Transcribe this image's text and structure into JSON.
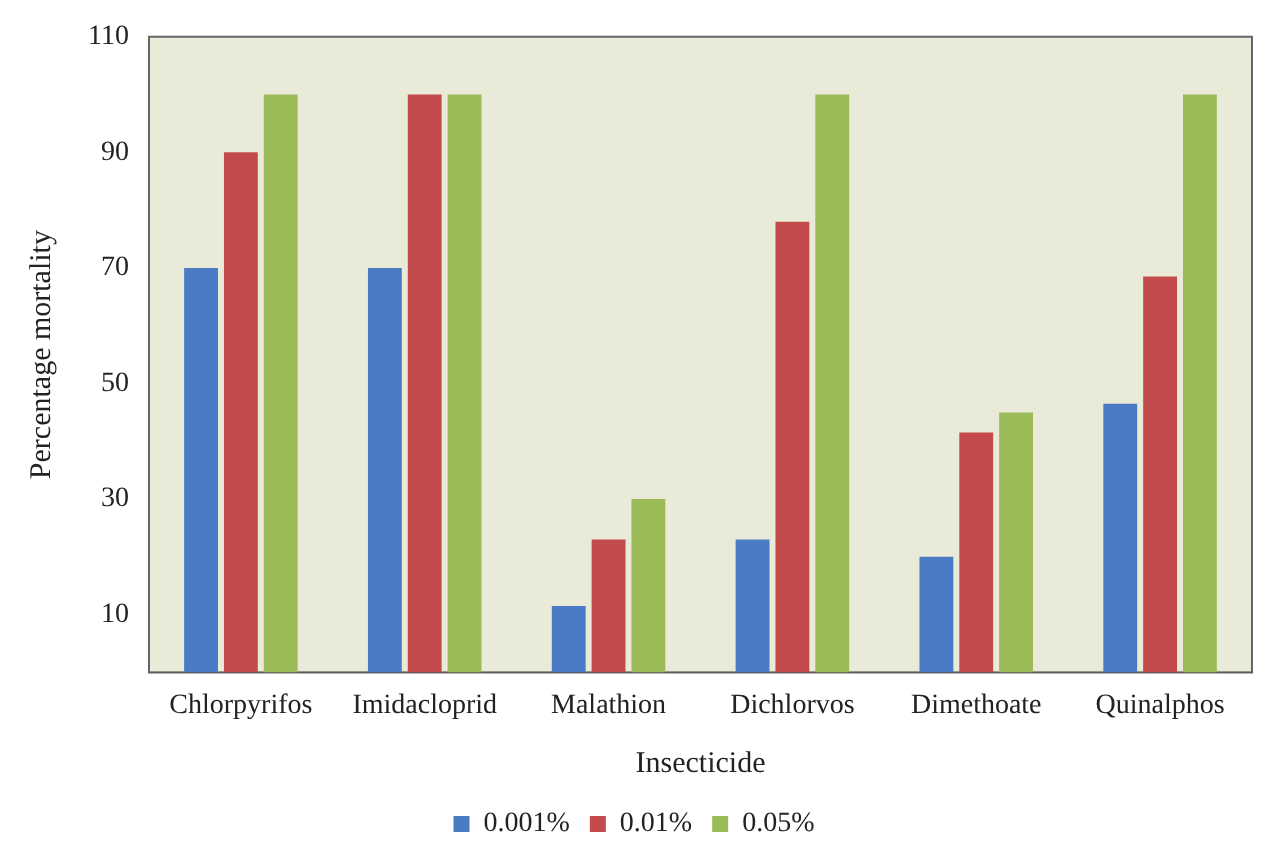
{
  "chart_data": {
    "type": "bar",
    "xlabel": "Insecticide",
    "ylabel": "Percentage mortality",
    "categories": [
      "Chlorpyrifos",
      "Imidacloprid",
      "Malathion",
      "Dichlorvos",
      "Dimethoate",
      "Quinalphos"
    ],
    "series": [
      {
        "name": "0.001%",
        "color": "#4a7bc4",
        "values": [
          70,
          70,
          11.5,
          23,
          20,
          46.5
        ]
      },
      {
        "name": "0.01%",
        "color": "#c44b4b",
        "values": [
          90,
          100,
          23,
          78,
          41.5,
          68.5
        ]
      },
      {
        "name": "0.05%",
        "color": "#9bbb59",
        "values": [
          100,
          100,
          30,
          100,
          45,
          100
        ]
      }
    ],
    "ylim": [
      0,
      110
    ],
    "yticks": [
      10,
      30,
      50,
      70,
      90,
      110
    ],
    "grid": false,
    "legend": "bottom"
  }
}
